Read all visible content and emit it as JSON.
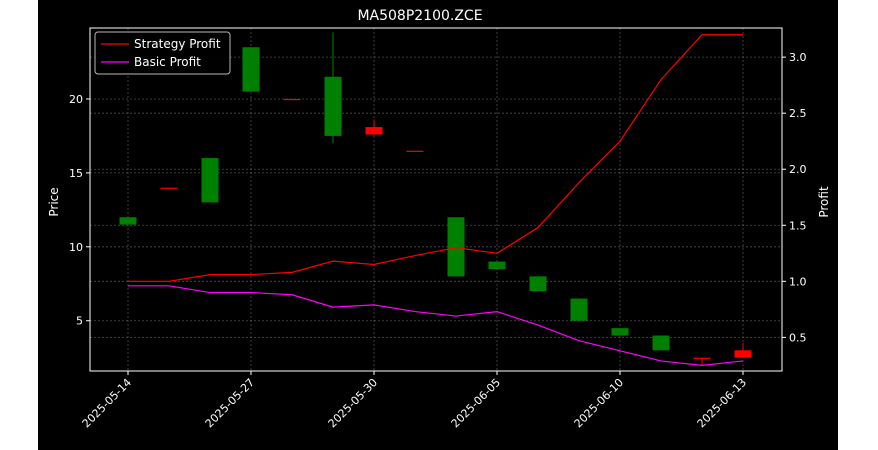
{
  "chart_data": {
    "type": "candlestick",
    "title": "MA508P2100.ZCE",
    "ylabel_left": "Price",
    "ylabel_right": "Profit",
    "xlabel": "",
    "grid": true,
    "legend_position": "top-left",
    "y_left_range": [
      1.6,
      24.8
    ],
    "y_left_ticks": [
      "5",
      "10",
      "15",
      "20"
    ],
    "y_right_range": [
      0.2,
      3.26
    ],
    "y_right_ticks": [
      "0.5",
      "1.0",
      "1.5",
      "2.0",
      "2.5",
      "3.0"
    ],
    "x_tick_labels": [
      "2025-05-14",
      "2025-05-27",
      "2025-05-30",
      "2025-06-05",
      "2025-06-10",
      "2025-06-13"
    ],
    "x_tick_positions": [
      0,
      3,
      6,
      9,
      12,
      15
    ],
    "candles": [
      {
        "open": 11.5,
        "high": 12.0,
        "low": 11.5,
        "close": 12.0,
        "color": "#008000"
      },
      {
        "open": 14.0,
        "high": 14.0,
        "low": 14.0,
        "close": 14.0,
        "color": "#ff0000"
      },
      {
        "open": 13.0,
        "high": 16.0,
        "low": 13.0,
        "close": 16.0,
        "color": "#008000"
      },
      {
        "open": 20.5,
        "high": 23.5,
        "low": 20.5,
        "close": 23.5,
        "color": "#008000"
      },
      {
        "open": 20.0,
        "high": 20.0,
        "low": 20.0,
        "close": 20.0,
        "color": "#ff0000"
      },
      {
        "open": 17.5,
        "high": 24.5,
        "low": 17.0,
        "close": 21.5,
        "color": "#008000"
      },
      {
        "open": 18.1,
        "high": 18.6,
        "low": 17.5,
        "close": 17.6,
        "color": "#ff0000"
      },
      {
        "open": 16.5,
        "high": 16.5,
        "low": 16.5,
        "close": 16.5,
        "color": "#ff0000"
      },
      {
        "open": 8.0,
        "high": 12.0,
        "low": 8.0,
        "close": 12.0,
        "color": "#008000"
      },
      {
        "open": 8.5,
        "high": 9.0,
        "low": 8.5,
        "close": 9.0,
        "color": "#008000"
      },
      {
        "open": 7.0,
        "high": 8.0,
        "low": 7.0,
        "close": 8.0,
        "color": "#008000"
      },
      {
        "open": 5.0,
        "high": 6.5,
        "low": 5.0,
        "close": 6.5,
        "color": "#008000"
      },
      {
        "open": 4.0,
        "high": 4.5,
        "low": 4.0,
        "close": 4.5,
        "color": "#008000"
      },
      {
        "open": 3.0,
        "high": 4.0,
        "low": 3.0,
        "close": 4.0,
        "color": "#008000"
      },
      {
        "open": 2.5,
        "high": 2.5,
        "low": 2.0,
        "close": 2.5,
        "color": "#ff0000"
      },
      {
        "open": 3.0,
        "high": 3.5,
        "low": 2.5,
        "close": 2.5,
        "color": "#ff0000"
      }
    ],
    "series": [
      {
        "name": "Strategy Profit",
        "color": "#ff0000",
        "axis": "right",
        "values": [
          1.0,
          1.0,
          1.06,
          1.06,
          1.08,
          1.18,
          1.15,
          1.23,
          1.3,
          1.25,
          1.48,
          1.88,
          2.25,
          2.8,
          3.2,
          3.2
        ]
      },
      {
        "name": "Basic Profit",
        "color": "#ff00ff",
        "axis": "right",
        "values": [
          0.96,
          0.96,
          0.9,
          0.9,
          0.88,
          0.77,
          0.79,
          0.73,
          0.69,
          0.73,
          0.61,
          0.47,
          0.38,
          0.29,
          0.25,
          0.29
        ]
      }
    ]
  }
}
